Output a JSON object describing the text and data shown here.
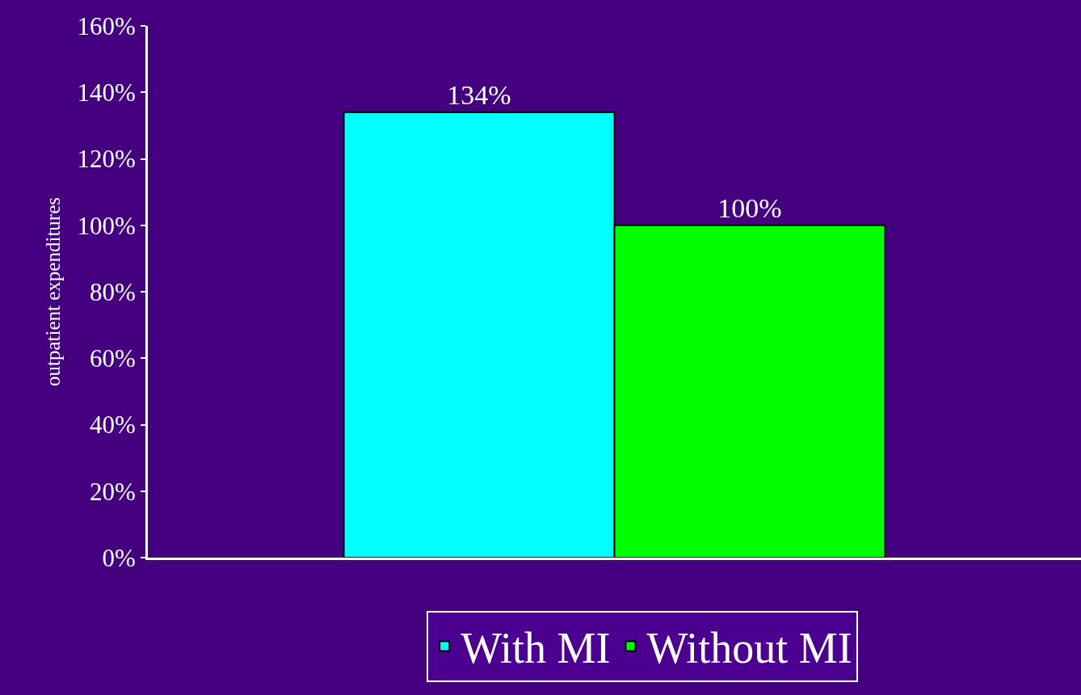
{
  "chart_data": {
    "type": "bar",
    "ylabel": "outpatient expenditures",
    "categories": [
      null
    ],
    "series": [
      {
        "name": "With MI",
        "color": "#00ffff",
        "values": [
          134
        ],
        "value_labels": [
          "134%"
        ]
      },
      {
        "name": "Without MI",
        "color": "#00ff00",
        "values": [
          100
        ],
        "value_labels": [
          "100%"
        ]
      }
    ],
    "ylim": [
      0,
      160
    ],
    "yticks": [
      {
        "value": 0,
        "label": "0%"
      },
      {
        "value": 20,
        "label": "20%"
      },
      {
        "value": 40,
        "label": "40%"
      },
      {
        "value": 60,
        "label": "60%"
      },
      {
        "value": 80,
        "label": "80%"
      },
      {
        "value": 100,
        "label": "100%"
      },
      {
        "value": 120,
        "label": "120%"
      },
      {
        "value": 140,
        "label": "140%"
      },
      {
        "value": 160,
        "label": "160%"
      }
    ],
    "grid": false,
    "legend": "bottom"
  }
}
